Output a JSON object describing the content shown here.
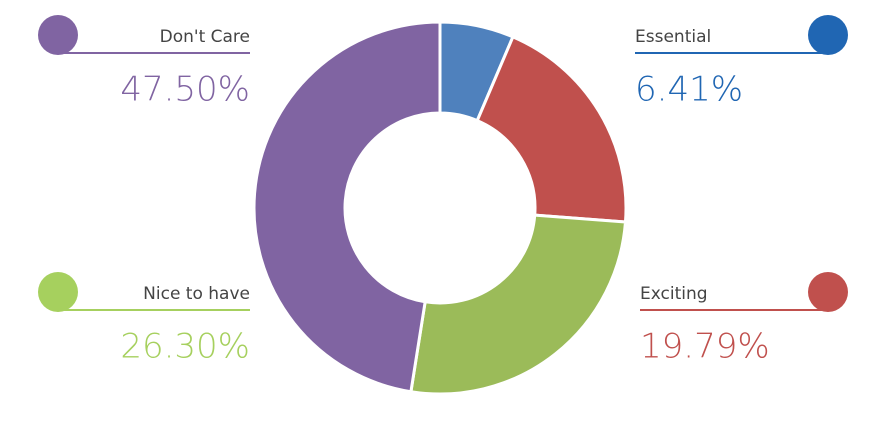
{
  "chart_data": {
    "type": "pie",
    "categories": [
      "Essential",
      "Exciting",
      "Nice to have",
      "Don't Care"
    ],
    "values": [
      6.41,
      19.79,
      26.3,
      47.5
    ],
    "value_labels": [
      "6.41%",
      "19.79%",
      "26.30%",
      "47.50%"
    ],
    "colors": [
      "#4f81bd",
      "#c0504d",
      "#9bbb59",
      "#8064a2"
    ],
    "legend_colors": [
      "#2066b3",
      "#c0504d",
      "#a6d05e",
      "#8064a2"
    ],
    "donut": true
  }
}
